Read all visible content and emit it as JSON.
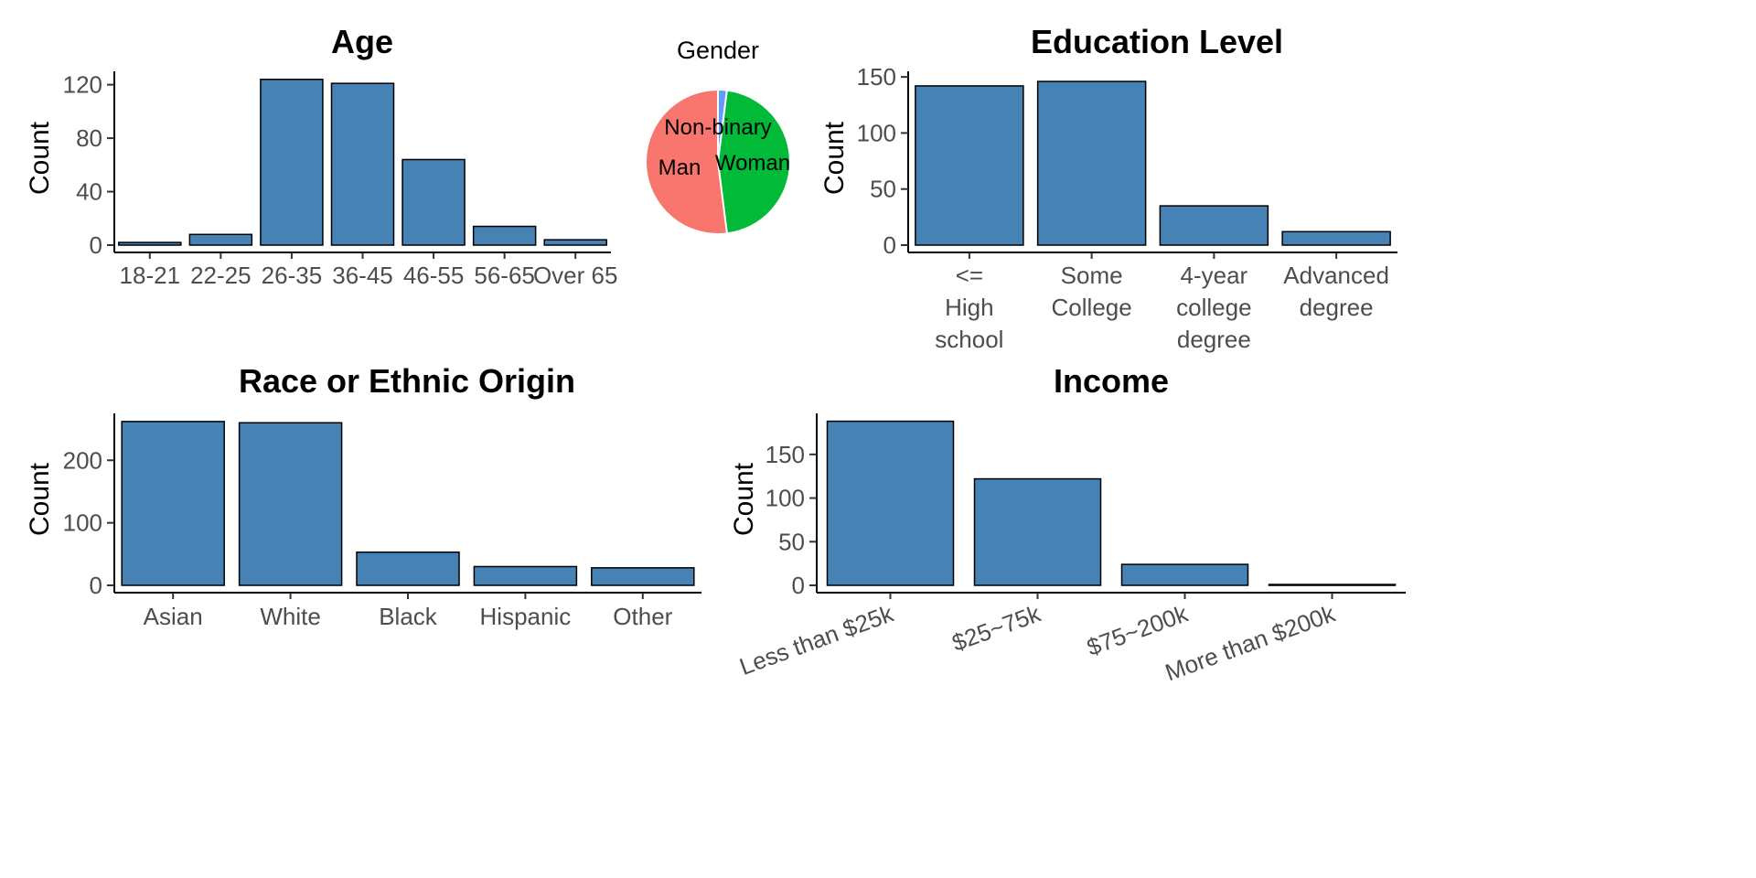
{
  "chart_data": [
    {
      "id": "age",
      "type": "bar",
      "title": "Age",
      "xlabel": "",
      "ylabel": "Count",
      "categories": [
        "18-21",
        "22-25",
        "26-35",
        "36-45",
        "46-55",
        "56-65",
        "Over 65"
      ],
      "values": [
        2,
        8,
        124,
        121,
        64,
        14,
        4
      ],
      "ylim": [
        0,
        130
      ],
      "yticks": [
        0,
        40,
        80,
        120
      ],
      "bar_color": "#4682b4",
      "grid": false
    },
    {
      "id": "gender",
      "type": "pie",
      "title": "Gender",
      "labels": [
        "Non-binary",
        "Woman",
        "Man"
      ],
      "values": [
        2,
        46,
        52
      ],
      "colors": [
        "#619cff",
        "#00ba38",
        "#f8766d"
      ]
    },
    {
      "id": "education",
      "type": "bar",
      "title": "Education Level",
      "xlabel": "",
      "ylabel": "Count",
      "categories": [
        [
          "<=",
          "High",
          "school"
        ],
        [
          "Some",
          "College"
        ],
        [
          "4-year",
          "college",
          "degree"
        ],
        [
          "Advanced",
          "degree"
        ]
      ],
      "values": [
        142,
        146,
        35,
        12
      ],
      "ylim": [
        0,
        155
      ],
      "yticks": [
        0,
        50,
        100,
        150
      ],
      "bar_color": "#4682b4",
      "grid": false
    },
    {
      "id": "race",
      "type": "bar",
      "title": "Race or Ethnic Origin",
      "xlabel": "",
      "ylabel": "Count",
      "categories": [
        "Asian",
        "White",
        "Black",
        "Hispanic",
        "Other"
      ],
      "values": [
        262,
        260,
        53,
        30,
        28
      ],
      "ylim": [
        0,
        275
      ],
      "yticks": [
        0,
        100,
        200
      ],
      "bar_color": "#4682b4",
      "grid": false
    },
    {
      "id": "income",
      "type": "bar",
      "title": "Income",
      "xlabel": "",
      "ylabel": "Count",
      "categories": [
        "Less than $25k",
        "$25~75k",
        "$75~200k",
        "More than $200k"
      ],
      "values": [
        188,
        122,
        24,
        1
      ],
      "ylim": [
        0,
        197
      ],
      "yticks": [
        0,
        50,
        100,
        150
      ],
      "bar_color": "#4682b4",
      "grid": false
    }
  ]
}
